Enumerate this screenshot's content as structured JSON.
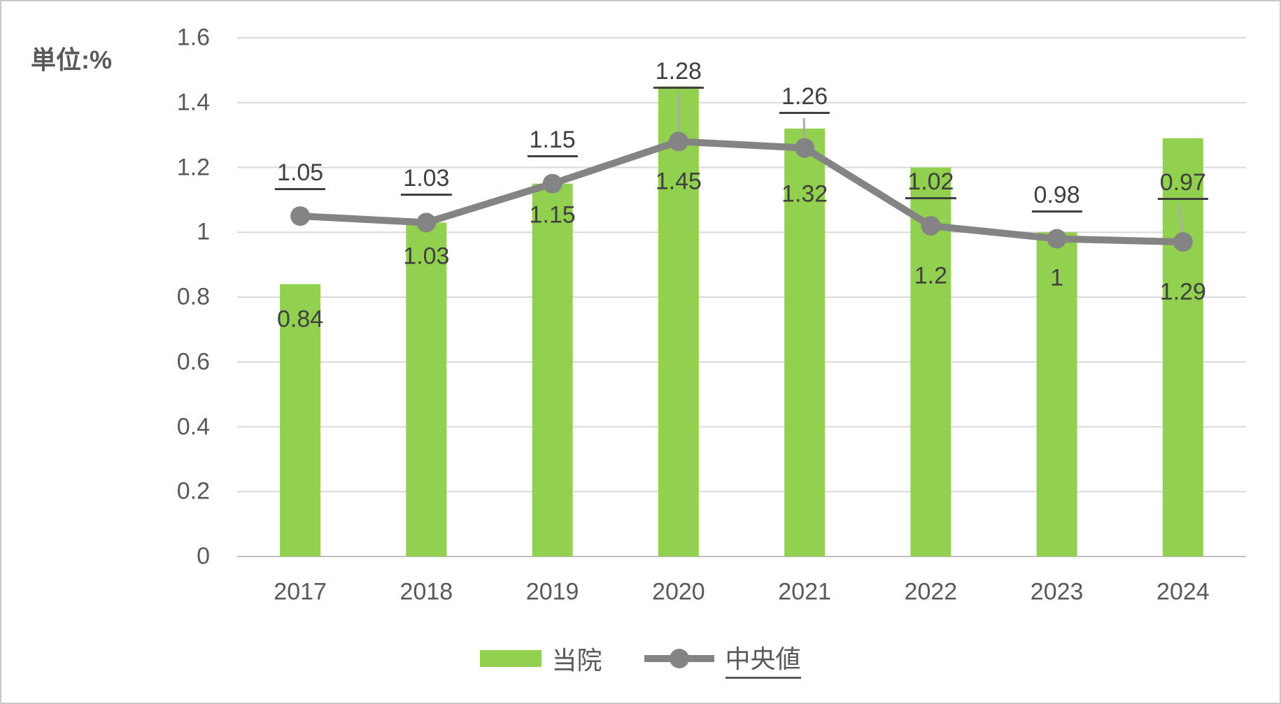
{
  "unit_label": "単位:%",
  "legend": [
    {
      "label": "当院",
      "type": "bar",
      "underline": false
    },
    {
      "label": "中央値",
      "type": "line",
      "underline": true
    }
  ],
  "colors": {
    "bar": "#92D050",
    "line": "#848484",
    "grid": "#D9D9D9",
    "axis": "#BFBFBF",
    "leader": "#ABABAB",
    "tick_text": "#595959",
    "label_text": "#404040"
  },
  "chart_data": {
    "type": "bar+line combo",
    "categories": [
      "2017",
      "2018",
      "2019",
      "2020",
      "2021",
      "2022",
      "2023",
      "2024"
    ],
    "series": [
      {
        "name": "当院",
        "type": "bar",
        "values": [
          0.84,
          1.03,
          1.15,
          1.45,
          1.32,
          1.2,
          1,
          1.29
        ],
        "labels": [
          "0.84",
          "1.03",
          "1.15",
          "1.45",
          "1.32",
          "1.2",
          "1",
          "1.29"
        ]
      },
      {
        "name": "中央値",
        "type": "line",
        "marker": "circle",
        "values": [
          1.05,
          1.03,
          1.15,
          1.28,
          1.26,
          1.02,
          0.98,
          0.97
        ],
        "labels": [
          "1.05",
          "1.03",
          "1.15",
          "1.28",
          "1.26",
          "1.02",
          "0.98",
          "0.97"
        ],
        "labels_underlined": true,
        "label_position": "above"
      }
    ],
    "title": "",
    "xlabel": "",
    "ylabel": "単位:%",
    "ylim": [
      0,
      1.6
    ],
    "ytick_step": 0.2,
    "yticks": [
      "0",
      "0.2",
      "0.4",
      "0.6",
      "0.8",
      "1",
      "1.2",
      "1.4",
      "1.6"
    ],
    "grid": "horizontal",
    "legend_position": "bottom",
    "layout": {
      "leader_line_categories": [
        "2020",
        "2021",
        "2024"
      ]
    }
  }
}
